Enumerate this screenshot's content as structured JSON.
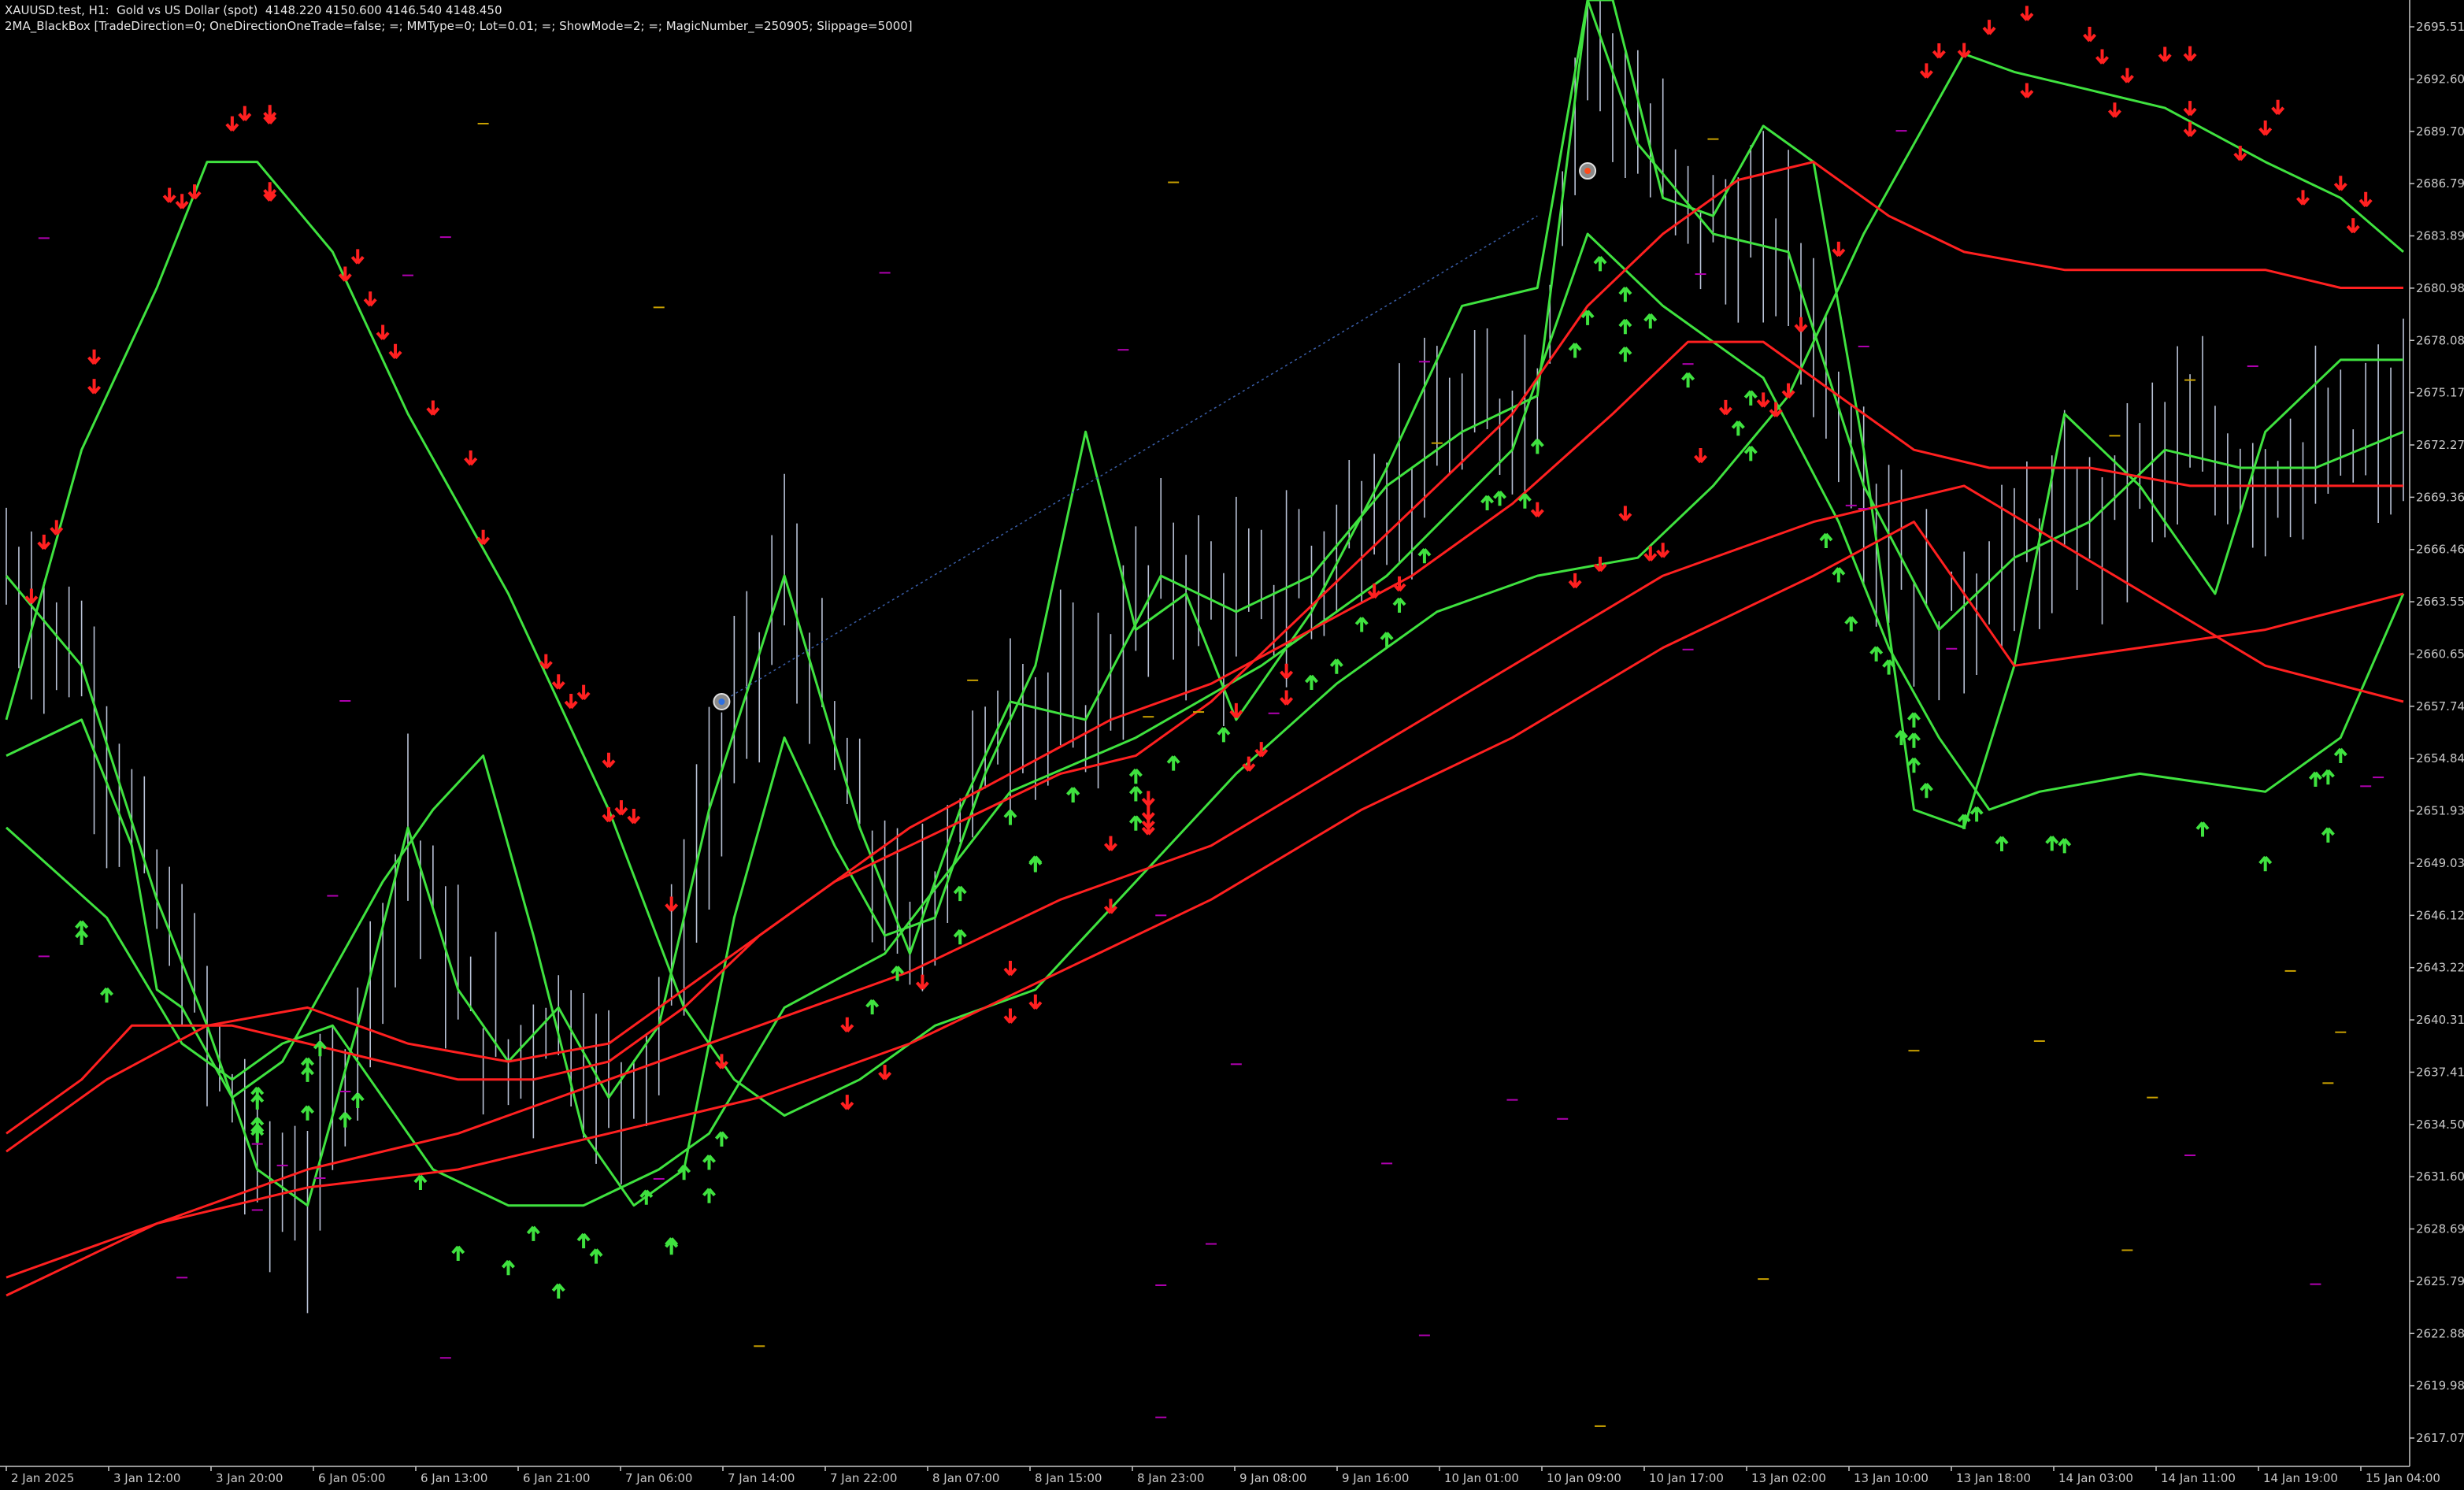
{
  "header": {
    "title_line": "XAUUSD.test, H1:  Gold vs US Dollar (spot)  4148.220 4150.600 4146.540 4148.450",
    "ea_line": "2MA_BlackBox [TradeDirection=0; OneDirectionOneTrade=false; =; MMType=0; Lot=0.01; =; ShowMode=2; =; MagicNumber_=250905; Slippage=5000]"
  },
  "colors": {
    "background": "#000000",
    "axis": "#c8c8c8",
    "bars": "#b9c2d6",
    "green_lines": "#3fe23f",
    "red_lines": "#ff2020",
    "up_arrow": "#3fe23f",
    "down_arrow": "#ff2020",
    "dash_marks": "#c8a000",
    "dash_marks_alt": "#b000b0",
    "trade_line": "#3a5ea8"
  },
  "chart_data": {
    "type": "line",
    "title": "XAUUSD.test, H1:  Gold vs US Dollar (spot)",
    "y_ticks": [
      "2695.510",
      "2692.605",
      "2689.700",
      "2686.795",
      "2683.890",
      "2680.985",
      "2678.080",
      "2675.175",
      "2672.270",
      "2669.365",
      "2666.460",
      "2663.555",
      "2660.650",
      "2657.745",
      "2654.840",
      "2651.935",
      "2649.030",
      "2646.125",
      "2643.220",
      "2640.315",
      "2637.410",
      "2634.505",
      "2631.600",
      "2628.695",
      "2625.790",
      "2622.885",
      "2619.980",
      "2617.075"
    ],
    "x_ticks": [
      "2 Jan 2025",
      "3 Jan 12:00",
      "3 Jan 20:00",
      "6 Jan 05:00",
      "6 Jan 13:00",
      "6 Jan 21:00",
      "7 Jan 06:00",
      "7 Jan 14:00",
      "7 Jan 22:00",
      "8 Jan 07:00",
      "8 Jan 15:00",
      "8 Jan 23:00",
      "9 Jan 08:00",
      "9 Jan 16:00",
      "10 Jan 01:00",
      "10 Jan 09:00",
      "10 Jan 17:00",
      "13 Jan 02:00",
      "13 Jan 10:00",
      "13 Jan 18:00",
      "14 Jan 03:00",
      "14 Jan 11:00",
      "14 Jan 19:00",
      "15 Jan 04:00"
    ],
    "ylim": [
      2615.5,
      2697.0
    ],
    "bar_count": 192,
    "series": [
      {
        "color": "green",
        "values": [
          [
            0,
            2657
          ],
          [
            6,
            2672
          ],
          [
            12,
            2681
          ],
          [
            16,
            2688
          ],
          [
            20,
            2688
          ],
          [
            26,
            2683
          ],
          [
            32,
            2674
          ],
          [
            40,
            2664
          ],
          [
            48,
            2652
          ],
          [
            54,
            2641
          ],
          [
            58,
            2637
          ],
          [
            62,
            2635
          ],
          [
            68,
            2637
          ],
          [
            74,
            2640
          ],
          [
            82,
            2642
          ],
          [
            90,
            2648
          ],
          [
            98,
            2654
          ],
          [
            106,
            2659
          ],
          [
            114,
            2663
          ],
          [
            122,
            2665
          ],
          [
            130,
            2666
          ],
          [
            136,
            2670
          ],
          [
            142,
            2675
          ],
          [
            148,
            2684
          ],
          [
            152,
            2689
          ],
          [
            156,
            2694
          ],
          [
            160,
            2693
          ],
          [
            166,
            2692
          ],
          [
            172,
            2691
          ],
          [
            180,
            2688
          ],
          [
            186,
            2686
          ],
          [
            191,
            2683
          ]
        ]
      },
      {
        "color": "green",
        "values": [
          [
            0,
            2651
          ],
          [
            8,
            2646
          ],
          [
            14,
            2639
          ],
          [
            18,
            2637
          ],
          [
            22,
            2639
          ],
          [
            26,
            2640
          ],
          [
            30,
            2636
          ],
          [
            34,
            2632
          ],
          [
            40,
            2630
          ],
          [
            46,
            2630
          ],
          [
            52,
            2632
          ],
          [
            56,
            2634
          ],
          [
            62,
            2641
          ],
          [
            70,
            2644
          ],
          [
            80,
            2653
          ],
          [
            90,
            2656
          ],
          [
            100,
            2660
          ],
          [
            110,
            2665
          ],
          [
            120,
            2672
          ],
          [
            126,
            2684
          ],
          [
            132,
            2680
          ],
          [
            140,
            2676
          ],
          [
            146,
            2668
          ],
          [
            150,
            2661
          ],
          [
            154,
            2656
          ],
          [
            158,
            2652
          ],
          [
            162,
            2653
          ],
          [
            170,
            2654
          ],
          [
            180,
            2653
          ],
          [
            186,
            2656
          ],
          [
            191,
            2664
          ]
        ]
      },
      {
        "color": "green",
        "values": [
          [
            0,
            2655
          ],
          [
            6,
            2657
          ],
          [
            10,
            2650
          ],
          [
            12,
            2642
          ],
          [
            14,
            2641
          ],
          [
            18,
            2636
          ],
          [
            22,
            2638
          ],
          [
            26,
            2643
          ],
          [
            30,
            2648
          ],
          [
            34,
            2652
          ],
          [
            38,
            2655
          ],
          [
            42,
            2645
          ],
          [
            46,
            2634
          ],
          [
            50,
            2630
          ],
          [
            54,
            2632
          ],
          [
            58,
            2646
          ],
          [
            62,
            2656
          ],
          [
            66,
            2650
          ],
          [
            70,
            2645
          ],
          [
            74,
            2646
          ],
          [
            78,
            2654
          ],
          [
            82,
            2660
          ],
          [
            86,
            2673
          ],
          [
            90,
            2662
          ],
          [
            94,
            2664
          ],
          [
            98,
            2657
          ],
          [
            104,
            2663
          ],
          [
            110,
            2671
          ],
          [
            116,
            2680
          ],
          [
            122,
            2681
          ],
          [
            126,
            2697
          ],
          [
            128,
            2697
          ],
          [
            132,
            2686
          ],
          [
            136,
            2685
          ],
          [
            140,
            2690
          ],
          [
            144,
            2688
          ],
          [
            148,
            2672
          ],
          [
            152,
            2652
          ],
          [
            156,
            2651
          ],
          [
            160,
            2660
          ],
          [
            164,
            2674
          ],
          [
            170,
            2670
          ],
          [
            176,
            2664
          ],
          [
            180,
            2673
          ],
          [
            186,
            2677
          ],
          [
            191,
            2677
          ]
        ]
      },
      {
        "color": "green",
        "values": [
          [
            0,
            2665
          ],
          [
            6,
            2660
          ],
          [
            12,
            2647
          ],
          [
            16,
            2640
          ],
          [
            20,
            2632
          ],
          [
            24,
            2630
          ],
          [
            28,
            2640
          ],
          [
            32,
            2651
          ],
          [
            36,
            2642
          ],
          [
            40,
            2638
          ],
          [
            44,
            2641
          ],
          [
            48,
            2636
          ],
          [
            52,
            2640
          ],
          [
            56,
            2652
          ],
          [
            62,
            2665
          ],
          [
            68,
            2651
          ],
          [
            72,
            2644
          ],
          [
            76,
            2652
          ],
          [
            80,
            2658
          ],
          [
            86,
            2657
          ],
          [
            92,
            2665
          ],
          [
            98,
            2663
          ],
          [
            104,
            2665
          ],
          [
            110,
            2670
          ],
          [
            116,
            2673
          ],
          [
            122,
            2675
          ],
          [
            126,
            2697
          ],
          [
            130,
            2689
          ],
          [
            136,
            2684
          ],
          [
            142,
            2683
          ],
          [
            148,
            2670
          ],
          [
            154,
            2662
          ],
          [
            160,
            2666
          ],
          [
            166,
            2668
          ],
          [
            172,
            2672
          ],
          [
            178,
            2671
          ],
          [
            184,
            2671
          ],
          [
            191,
            2673
          ]
        ]
      },
      {
        "color": "red",
        "values": [
          [
            0,
            2634
          ],
          [
            6,
            2637
          ],
          [
            10,
            2640
          ],
          [
            14,
            2640
          ],
          [
            18,
            2640
          ],
          [
            24,
            2639
          ],
          [
            30,
            2638
          ],
          [
            36,
            2637
          ],
          [
            42,
            2637
          ],
          [
            48,
            2638
          ],
          [
            54,
            2641
          ],
          [
            60,
            2645
          ],
          [
            66,
            2648
          ],
          [
            72,
            2650
          ],
          [
            78,
            2652
          ],
          [
            84,
            2654
          ],
          [
            90,
            2655
          ],
          [
            96,
            2658
          ],
          [
            102,
            2662
          ],
          [
            108,
            2666
          ],
          [
            114,
            2670
          ],
          [
            120,
            2674
          ],
          [
            126,
            2680
          ],
          [
            132,
            2684
          ],
          [
            138,
            2687
          ],
          [
            144,
            2688
          ],
          [
            150,
            2685
          ],
          [
            156,
            2683
          ],
          [
            164,
            2682
          ],
          [
            172,
            2682
          ],
          [
            180,
            2682
          ],
          [
            186,
            2681
          ],
          [
            191,
            2681
          ]
        ]
      },
      {
        "color": "red",
        "values": [
          [
            0,
            2633
          ],
          [
            8,
            2637
          ],
          [
            16,
            2640
          ],
          [
            24,
            2641
          ],
          [
            32,
            2639
          ],
          [
            40,
            2638
          ],
          [
            48,
            2639
          ],
          [
            56,
            2643
          ],
          [
            64,
            2647
          ],
          [
            72,
            2651
          ],
          [
            80,
            2654
          ],
          [
            88,
            2657
          ],
          [
            96,
            2659
          ],
          [
            104,
            2662
          ],
          [
            112,
            2665
          ],
          [
            120,
            2669
          ],
          [
            128,
            2674
          ],
          [
            134,
            2678
          ],
          [
            140,
            2678
          ],
          [
            146,
            2675
          ],
          [
            152,
            2672
          ],
          [
            158,
            2671
          ],
          [
            166,
            2671
          ],
          [
            174,
            2670
          ],
          [
            182,
            2670
          ],
          [
            191,
            2670
          ]
        ]
      },
      {
        "color": "red",
        "values": [
          [
            0,
            2625
          ],
          [
            12,
            2629
          ],
          [
            24,
            2632
          ],
          [
            36,
            2634
          ],
          [
            48,
            2637
          ],
          [
            60,
            2640
          ],
          [
            72,
            2643
          ],
          [
            84,
            2647
          ],
          [
            96,
            2650
          ],
          [
            108,
            2655
          ],
          [
            120,
            2660
          ],
          [
            132,
            2665
          ],
          [
            144,
            2668
          ],
          [
            156,
            2670
          ],
          [
            168,
            2665
          ],
          [
            180,
            2660
          ],
          [
            191,
            2658
          ]
        ]
      },
      {
        "color": "red",
        "values": [
          [
            0,
            2626
          ],
          [
            12,
            2629
          ],
          [
            24,
            2631
          ],
          [
            36,
            2632
          ],
          [
            48,
            2634
          ],
          [
            60,
            2636
          ],
          [
            72,
            2639
          ],
          [
            84,
            2643
          ],
          [
            96,
            2647
          ],
          [
            108,
            2652
          ],
          [
            120,
            2656
          ],
          [
            132,
            2661
          ],
          [
            144,
            2665
          ],
          [
            152,
            2668
          ],
          [
            160,
            2660
          ],
          [
            170,
            2661
          ],
          [
            180,
            2662
          ],
          [
            191,
            2664
          ]
        ]
      }
    ],
    "up_arrows": 84,
    "down_arrows": 86
  }
}
